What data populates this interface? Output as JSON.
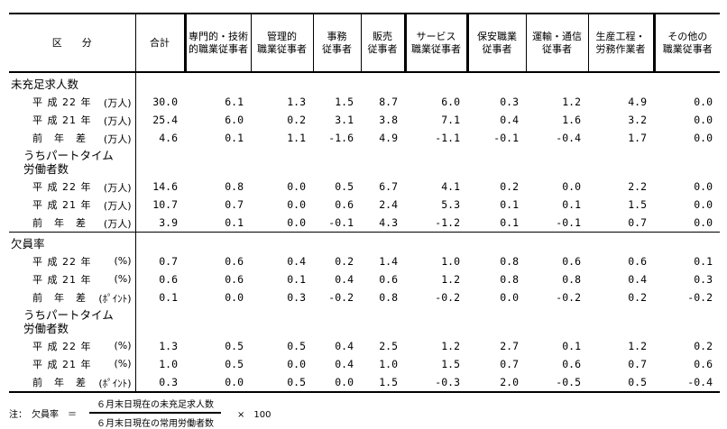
{
  "headers": [
    "区　　分",
    "合計",
    "専門的・技術\n的職業従事者",
    "管理的\n職業従事者",
    "事務\n従事者",
    "販売\n従事者",
    "サービス\n職業従事者",
    "保安職業\n従事者",
    "運輸・通信\n従事者",
    "生産工程・\n労務作業者",
    "その他の\n職業従事者"
  ],
  "rows": [
    {
      "type": "sec",
      "label": "未充足求人数"
    },
    {
      "type": "dat",
      "label": "平 成 22 年",
      "unit": "(万人)",
      "values": [
        "30.0",
        "6.1",
        "1.3",
        "1.5",
        "8.7",
        "6.0",
        "0.3",
        "1.2",
        "4.9",
        "0.0"
      ]
    },
    {
      "type": "dat",
      "label": "平 成 21 年",
      "unit": "(万人)",
      "values": [
        "25.4",
        "6.0",
        "0.2",
        "3.1",
        "3.8",
        "7.1",
        "0.4",
        "1.6",
        "3.2",
        "0.0"
      ]
    },
    {
      "type": "dat",
      "label": "前　年　差",
      "unit": "(万人)",
      "values": [
        "4.6",
        "0.1",
        "1.1",
        "-1.6",
        "4.9",
        "-1.1",
        "-0.1",
        "-0.4",
        "1.7",
        "0.0"
      ]
    },
    {
      "type": "sub",
      "label": "うちパートタイム\n労働者数"
    },
    {
      "type": "dat",
      "label": "平 成 22 年",
      "unit": "(万人)",
      "values": [
        "14.6",
        "0.8",
        "0.0",
        "0.5",
        "6.7",
        "4.1",
        "0.2",
        "0.0",
        "2.2",
        "0.0"
      ]
    },
    {
      "type": "dat",
      "label": "平 成 21 年",
      "unit": "(万人)",
      "values": [
        "10.7",
        "0.7",
        "0.0",
        "0.6",
        "2.4",
        "5.3",
        "0.1",
        "0.1",
        "1.5",
        "0.0"
      ]
    },
    {
      "type": "dat",
      "label": "前　年　差",
      "unit": "(万人)",
      "values": [
        "3.9",
        "0.1",
        "0.0",
        "-0.1",
        "4.3",
        "-1.2",
        "0.1",
        "-0.1",
        "0.7",
        "0.0"
      ]
    },
    {
      "type": "sec",
      "label": "欠員率",
      "sep": true
    },
    {
      "type": "dat",
      "label": "平 成 22 年",
      "unit": "(%)",
      "values": [
        "0.7",
        "0.6",
        "0.4",
        "0.2",
        "1.4",
        "1.0",
        "0.8",
        "0.6",
        "0.6",
        "0.1"
      ]
    },
    {
      "type": "dat",
      "label": "平 成 21 年",
      "unit": "(%)",
      "values": [
        "0.6",
        "0.6",
        "0.1",
        "0.4",
        "0.6",
        "1.2",
        "0.8",
        "0.8",
        "0.4",
        "0.3"
      ]
    },
    {
      "type": "dat",
      "label": "前　年　差",
      "unit": "(ﾎﾟｲﾝﾄ)",
      "values": [
        "0.1",
        "0.0",
        "0.3",
        "-0.2",
        "0.8",
        "-0.2",
        "0.0",
        "-0.2",
        "0.2",
        "-0.2"
      ]
    },
    {
      "type": "sub",
      "label": "うちパートタイム\n労働者数"
    },
    {
      "type": "dat",
      "label": "平 成 22 年",
      "unit": "(%)",
      "values": [
        "1.3",
        "0.5",
        "0.5",
        "0.4",
        "2.5",
        "1.2",
        "2.7",
        "0.1",
        "1.2",
        "0.2"
      ]
    },
    {
      "type": "dat",
      "label": "平 成 21 年",
      "unit": "(%)",
      "values": [
        "1.0",
        "0.5",
        "0.0",
        "0.4",
        "1.0",
        "1.5",
        "0.7",
        "0.6",
        "0.7",
        "0.6"
      ]
    },
    {
      "type": "dat",
      "label": "前　年　差",
      "unit": "(ﾎﾟｲﾝﾄ)",
      "values": [
        "0.3",
        "0.0",
        "0.5",
        "0.0",
        "1.5",
        "-0.3",
        "2.0",
        "-0.5",
        "0.5",
        "-0.4"
      ]
    }
  ],
  "note": {
    "prefix": "注：　欠員率　＝",
    "numerator": "６月末日現在の未充足求人数",
    "denominator": "６月末日現在の常用労働者数",
    "multiplier": "×　100"
  }
}
